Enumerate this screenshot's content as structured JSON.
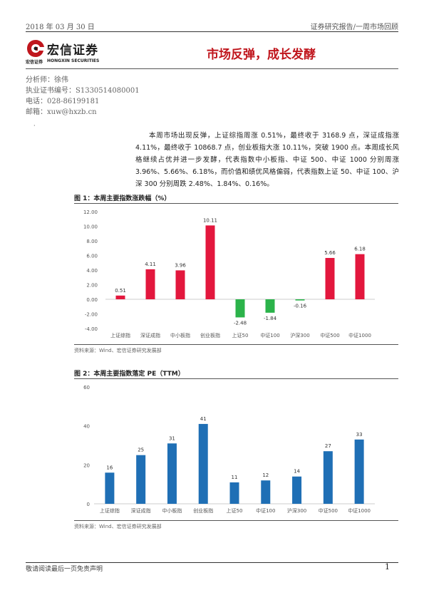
{
  "header": {
    "date": "2018 年 03 月 30 日",
    "category": "证券研究报告/一周市场回顾"
  },
  "logo": {
    "name_cn": "宏信证券",
    "sub_cn": "宏信证券",
    "sub_en": "HONGXIN SECURITIES",
    "brand_color": "#c0161d"
  },
  "title": "市场反弹，成长发酵",
  "analyst": {
    "name": "分析师：徐伟",
    "cert": "执业证书编号：S1330514080001",
    "phone": "电话：028-86199181",
    "email": "邮箱：xuw@hxzb.cn"
  },
  "summary": "本周市场出现反弹，上证综指周涨 0.51%，最终收于 3168.9 点，深证成指涨 4.11%，最终收于 10868.7 点，创业板指大涨 10.11%，突破 1900 点。本周成长风格继续占优并进一步发酵，代表指数中小板指、中证 500、中证 1000 分别周涨 3.96%、5.66%、6.18%，而价值和绩优风格偏弱，代表指数上证 50、中证 100、沪深 300 分别周跌 2.48%、1.84%、0.16%。",
  "figure1": {
    "title": "图 1：本周主要指数涨跌幅（%）",
    "source": "资料来源：Wind、宏信证券研究发展部"
  },
  "figure2": {
    "title": "图 2：本周主要指数落定 PE（TTM）",
    "source": "资料来源：Wind、宏信证券研究发展部"
  },
  "chart_data": [
    {
      "type": "bar",
      "title": "本周主要指数涨跌幅（%）",
      "categories": [
        "上证综指",
        "深证成指",
        "中小板指",
        "创业板指",
        "上证50",
        "中证100",
        "沪深300",
        "中证500",
        "中证1000"
      ],
      "values": [
        0.51,
        4.11,
        3.96,
        10.11,
        -2.48,
        -1.84,
        -0.16,
        5.66,
        6.18
      ],
      "value_labels": [
        "0.51",
        "4.11",
        "3.96",
        "10.11",
        "-2.48",
        "-1.84",
        "-0.16",
        "5.66",
        "6.18"
      ],
      "ylim": [
        -4,
        12
      ],
      "yticks": [
        -4,
        -2,
        0,
        2,
        4,
        6,
        8,
        10,
        12
      ],
      "ytick_labels": [
        "-4.00",
        "-2.00",
        "0.00",
        "2.00",
        "4.00",
        "6.00",
        "8.00",
        "10.00",
        "12.00"
      ],
      "grid": false,
      "colors": {
        "positive": "#e3173d",
        "negative": "#2bb34a"
      }
    },
    {
      "type": "bar",
      "title": "本周主要指数落定 PE（TTM）",
      "categories": [
        "上证综指",
        "深证成指",
        "中小板指",
        "创业板指",
        "上证50",
        "中证100",
        "沪深300",
        "中证500",
        "中证1000"
      ],
      "values": [
        16,
        25,
        31,
        41,
        11,
        12,
        14,
        27,
        33
      ],
      "value_labels": [
        "16",
        "25",
        "31",
        "41",
        "11",
        "12",
        "14",
        "27",
        "33"
      ],
      "ylim": [
        0,
        60
      ],
      "yticks": [
        0,
        20,
        40,
        60
      ],
      "ytick_labels": [
        "0",
        "20",
        "40",
        "60"
      ],
      "grid": false,
      "colors": {
        "bar": "#1f6fb5"
      }
    }
  ],
  "footer": {
    "disclaimer": "敬请阅读最后一页免责声明",
    "page": "1"
  }
}
